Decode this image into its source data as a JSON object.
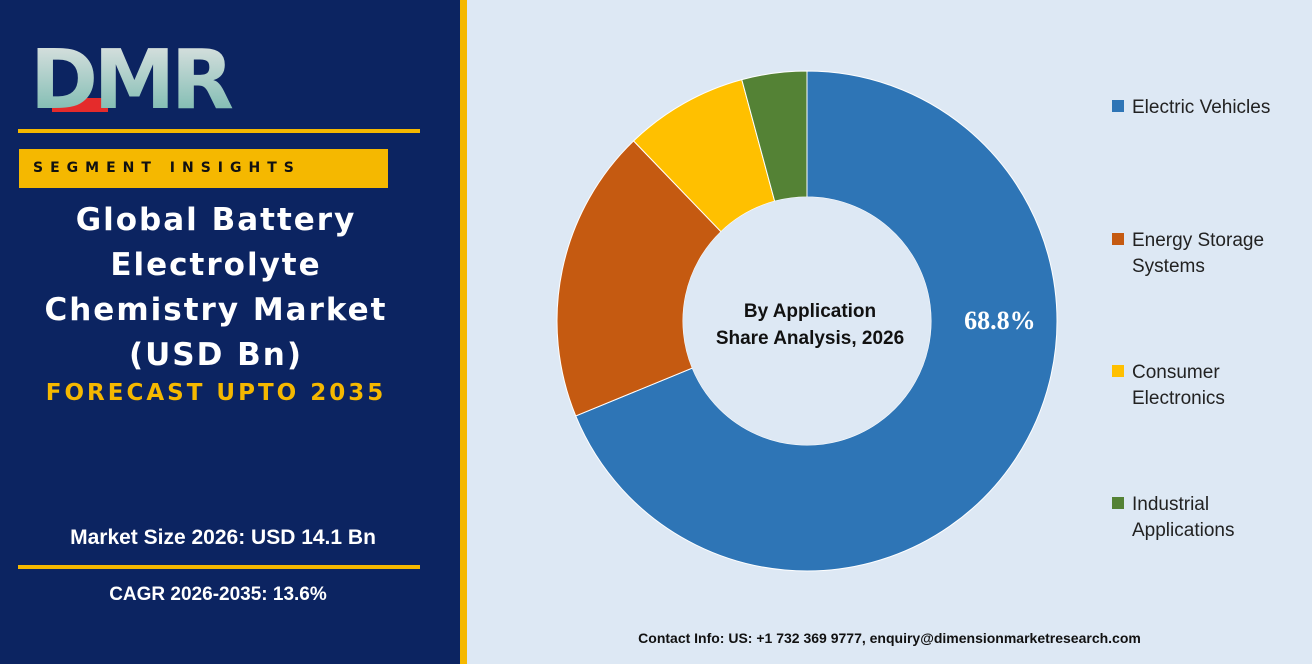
{
  "brand": {
    "logo_text": "DMR"
  },
  "left_panel": {
    "segment_label": "SEGMENT INSIGHTS",
    "title_lines": [
      "Global Battery",
      "Electrolyte",
      "Chemistry Market",
      "(USD Bn)"
    ],
    "forecast": "FORECAST UPTO 2035",
    "market_size": "Market Size 2026: USD 14.1 Bn",
    "cagr": "CAGR 2026-2035: 13.6%"
  },
  "chart_data": {
    "type": "pie",
    "style": "donut",
    "title": "",
    "center_label": [
      "By Application",
      "Share Analysis, 2026"
    ],
    "categories": [
      "Electric Vehicles",
      "Energy Storage Systems",
      "Consumer Electronics",
      "Industrial Applications"
    ],
    "values": [
      68.8,
      19.0,
      8.0,
      4.2
    ],
    "data_labels": [
      "68.8%",
      "",
      "",
      ""
    ],
    "colors": [
      "#2e75b6",
      "#c55a11",
      "#ffc000",
      "#548235"
    ],
    "legend_position": "right"
  },
  "footer": {
    "contact": "Contact Info: US: +1 732 369 9777, enquiry@dimensionmarketresearch.com"
  }
}
